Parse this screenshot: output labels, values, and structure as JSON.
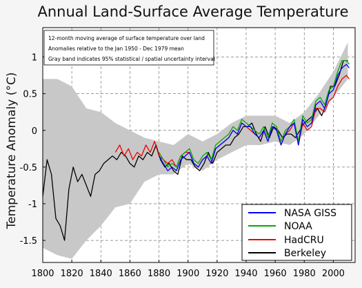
{
  "chart_data": {
    "type": "line",
    "title": "Annual Land-Surface Average Temperature",
    "xlabel": "",
    "ylabel": "Temperature Anomaly (°C)",
    "xlim": [
      1800,
      2015
    ],
    "ylim": [
      -1.8,
      1.4
    ],
    "x_ticks": [
      1800,
      1820,
      1840,
      1860,
      1880,
      1900,
      1920,
      1940,
      1960,
      1980,
      2000
    ],
    "y_ticks": [
      -1.5,
      -1,
      -0.5,
      0,
      0.5,
      1
    ],
    "x_tick_labels": [
      "1800",
      "1820",
      "1840",
      "1860",
      "1880",
      "1900",
      "1920",
      "1940",
      "1960",
      "1980",
      "2000"
    ],
    "y_tick_labels": [
      "-1.5",
      "-1",
      "-0.5",
      "0",
      "0.5",
      "1"
    ],
    "grid": true,
    "legend_position": "bottom-right",
    "annotations": [
      "12-month moving average of surface temperature over land",
      "Anomalies relative to the Jan 1950 - Dec 1979 mean",
      "Gray band indicates 95% statistical / spatial uncertainty interval"
    ],
    "uncertainty_band": {
      "color": "#c8c8c8",
      "x": [
        1800,
        1810,
        1820,
        1830,
        1840,
        1850,
        1860,
        1870,
        1880,
        1890,
        1900,
        1910,
        1920,
        1930,
        1940,
        1950,
        1960,
        1970,
        1980,
        1990,
        2000,
        2010
      ],
      "lower": [
        -1.6,
        -1.7,
        -1.75,
        -1.5,
        -1.3,
        -1.05,
        -1.0,
        -0.7,
        -0.6,
        -0.6,
        -0.45,
        -0.55,
        -0.4,
        -0.3,
        -0.2,
        -0.2,
        -0.15,
        -0.2,
        -0.05,
        0.2,
        0.45,
        0.7
      ],
      "upper": [
        0.7,
        0.7,
        0.6,
        0.3,
        0.25,
        0.1,
        0.0,
        -0.1,
        -0.15,
        -0.2,
        -0.05,
        -0.15,
        -0.05,
        0.1,
        0.2,
        0.2,
        0.2,
        0.1,
        0.25,
        0.5,
        0.8,
        1.2
      ]
    },
    "series": [
      {
        "name": "NASA GISS",
        "color": "#0000ff",
        "x": [
          1880,
          1883,
          1886,
          1889,
          1892,
          1895,
          1898,
          1901,
          1904,
          1907,
          1910,
          1913,
          1916,
          1919,
          1922,
          1925,
          1928,
          1931,
          1934,
          1937,
          1940,
          1943,
          1946,
          1949,
          1952,
          1955,
          1958,
          1961,
          1964,
          1967,
          1970,
          1973,
          1976,
          1979,
          1982,
          1985,
          1988,
          1991,
          1994,
          1997,
          2000,
          2003,
          2006,
          2009,
          2011
        ],
        "values": [
          -0.35,
          -0.45,
          -0.55,
          -0.5,
          -0.55,
          -0.4,
          -0.35,
          -0.3,
          -0.45,
          -0.5,
          -0.4,
          -0.35,
          -0.45,
          -0.25,
          -0.2,
          -0.15,
          -0.1,
          0.0,
          -0.05,
          0.1,
          0.05,
          0.05,
          -0.05,
          -0.1,
          0.0,
          -0.15,
          0.05,
          0.0,
          -0.2,
          -0.05,
          0.05,
          0.1,
          -0.2,
          0.15,
          0.05,
          0.1,
          0.35,
          0.4,
          0.3,
          0.5,
          0.55,
          0.75,
          0.85,
          0.9,
          0.85
        ]
      },
      {
        "name": "NOAA",
        "color": "#00aa00",
        "x": [
          1880,
          1883,
          1886,
          1889,
          1892,
          1895,
          1898,
          1901,
          1904,
          1907,
          1910,
          1913,
          1916,
          1919,
          1922,
          1925,
          1928,
          1931,
          1934,
          1937,
          1940,
          1943,
          1946,
          1949,
          1952,
          1955,
          1958,
          1961,
          1964,
          1967,
          1970,
          1973,
          1976,
          1979,
          1982,
          1985,
          1988,
          1991,
          1994,
          1997,
          2000,
          2003,
          2006,
          2009,
          2011
        ],
        "values": [
          -0.3,
          -0.4,
          -0.5,
          -0.45,
          -0.5,
          -0.35,
          -0.3,
          -0.25,
          -0.4,
          -0.45,
          -0.35,
          -0.3,
          -0.4,
          -0.2,
          -0.15,
          -0.1,
          -0.05,
          0.05,
          0.0,
          0.15,
          0.1,
          0.05,
          0.0,
          -0.05,
          0.05,
          -0.1,
          0.1,
          0.05,
          -0.15,
          0.0,
          0.05,
          0.15,
          -0.15,
          0.2,
          0.1,
          0.15,
          0.4,
          0.45,
          0.35,
          0.55,
          0.6,
          0.8,
          0.95,
          0.95,
          0.9
        ]
      },
      {
        "name": "HadCRU",
        "color": "#ee0000",
        "x": [
          1850,
          1853,
          1856,
          1859,
          1862,
          1865,
          1868,
          1871,
          1874,
          1877,
          1880,
          1883,
          1886,
          1889,
          1892,
          1895,
          1898,
          1901,
          1904,
          1907,
          1910,
          1913,
          1916,
          1919,
          1922,
          1925,
          1928,
          1931,
          1934,
          1937,
          1940,
          1943,
          1946,
          1949,
          1952,
          1955,
          1958,
          1961,
          1964,
          1967,
          1970,
          1973,
          1976,
          1979,
          1982,
          1985,
          1988,
          1991,
          1994,
          1997,
          2000,
          2003,
          2006,
          2009,
          2011
        ],
        "values": [
          -0.3,
          -0.2,
          -0.35,
          -0.25,
          -0.4,
          -0.3,
          -0.35,
          -0.2,
          -0.3,
          -0.15,
          -0.35,
          -0.4,
          -0.45,
          -0.4,
          -0.5,
          -0.35,
          -0.3,
          -0.3,
          -0.45,
          -0.5,
          -0.4,
          -0.35,
          -0.45,
          -0.25,
          -0.2,
          -0.15,
          -0.1,
          0.0,
          -0.05,
          0.1,
          0.05,
          0.0,
          -0.05,
          -0.1,
          0.0,
          -0.15,
          0.05,
          0.0,
          -0.2,
          -0.05,
          0.0,
          0.1,
          -0.2,
          0.1,
          0.0,
          0.05,
          0.3,
          0.3,
          0.25,
          0.4,
          0.45,
          0.6,
          0.7,
          0.75,
          0.7
        ]
      },
      {
        "name": "Berkeley",
        "color": "#000000",
        "x": [
          1800,
          1803,
          1806,
          1809,
          1812,
          1815,
          1818,
          1821,
          1824,
          1827,
          1830,
          1833,
          1836,
          1839,
          1842,
          1845,
          1848,
          1851,
          1854,
          1857,
          1860,
          1863,
          1866,
          1869,
          1872,
          1875,
          1878,
          1881,
          1884,
          1887,
          1890,
          1893,
          1896,
          1899,
          1902,
          1905,
          1908,
          1911,
          1914,
          1917,
          1920,
          1923,
          1926,
          1929,
          1932,
          1935,
          1938,
          1941,
          1944,
          1947,
          1950,
          1953,
          1956,
          1959,
          1962,
          1965,
          1968,
          1971,
          1974,
          1977,
          1980,
          1983,
          1986,
          1989,
          1992,
          1995,
          1998,
          2001,
          2004,
          2007,
          2010
        ],
        "values": [
          -0.9,
          -0.4,
          -0.6,
          -1.2,
          -1.3,
          -1.5,
          -0.8,
          -0.5,
          -0.7,
          -0.6,
          -0.75,
          -0.9,
          -0.6,
          -0.55,
          -0.45,
          -0.4,
          -0.35,
          -0.4,
          -0.3,
          -0.35,
          -0.45,
          -0.5,
          -0.35,
          -0.4,
          -0.3,
          -0.35,
          -0.2,
          -0.4,
          -0.5,
          -0.45,
          -0.55,
          -0.6,
          -0.35,
          -0.4,
          -0.4,
          -0.5,
          -0.55,
          -0.45,
          -0.3,
          -0.45,
          -0.3,
          -0.25,
          -0.2,
          -0.2,
          -0.1,
          -0.05,
          0.05,
          0.05,
          0.1,
          -0.05,
          -0.15,
          0.05,
          -0.1,
          0.05,
          0.0,
          -0.1,
          -0.05,
          -0.05,
          -0.1,
          0.0,
          0.1,
          0.15,
          0.2,
          0.3,
          0.2,
          0.35,
          0.6,
          0.6,
          0.75,
          0.95,
          0.95
        ]
      }
    ]
  }
}
